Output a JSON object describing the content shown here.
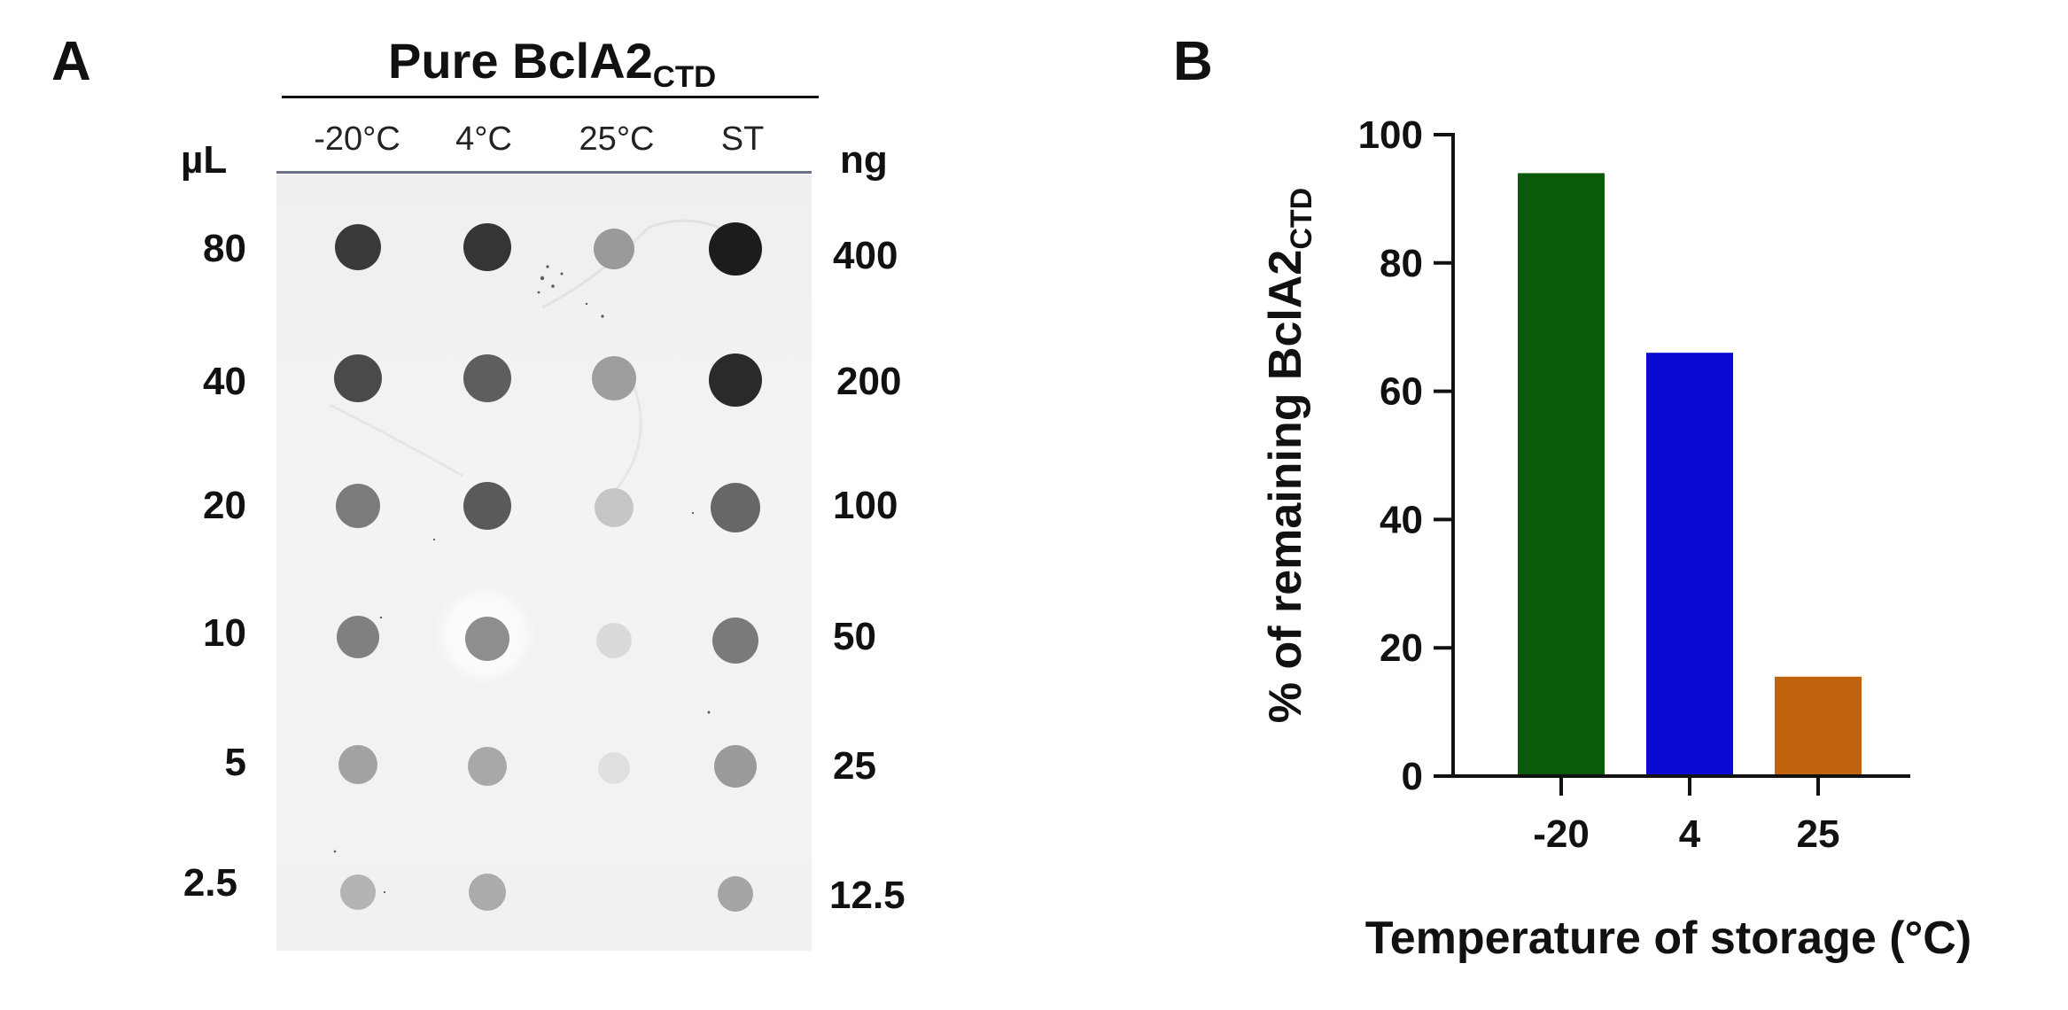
{
  "panel_a": {
    "letter": "A",
    "title_main": "Pure BclA2",
    "title_sub": "CTD",
    "left_unit": "µL",
    "right_unit": "ng",
    "columns": [
      "-20°C",
      "4°C",
      "25°C",
      "ST"
    ],
    "volumes_ul": [
      "80",
      "40",
      "20",
      "10",
      "5",
      "2.5"
    ],
    "amounts_ng": [
      "400",
      "200",
      "100",
      "50",
      "25",
      "12.5"
    ]
  },
  "panel_b": {
    "letter": "B"
  },
  "chart_data": {
    "type": "bar",
    "categories": [
      "-20",
      "4",
      "25"
    ],
    "values": [
      94,
      66,
      15.5
    ],
    "colors": [
      "#0b5a0b",
      "#0a0ad2",
      "#c0620e"
    ],
    "xlabel": "Temperature of storage (°C)",
    "ylabel_main": "% of remaining BclA2",
    "ylabel_sub": "CTD",
    "ylim": [
      0,
      100
    ],
    "yticks": [
      "0",
      "20",
      "40",
      "60",
      "80",
      "100"
    ],
    "grid": false
  }
}
